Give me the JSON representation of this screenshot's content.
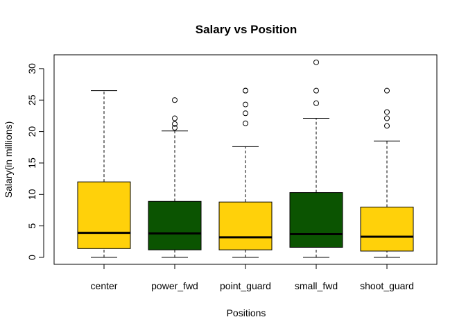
{
  "chart_data": {
    "type": "boxplot",
    "title": "Salary vs Position",
    "xlabel": "Positions",
    "ylabel": "Salary(in millions)",
    "ylim": [
      0,
      31
    ],
    "yticks": [
      0,
      5,
      10,
      15,
      20,
      25,
      30
    ],
    "categories": [
      "center",
      "power_fwd",
      "point_guard",
      "small_fwd",
      "shoot_guard"
    ],
    "boxes": [
      {
        "category": "center",
        "min": 0.0,
        "q1": 1.4,
        "median": 3.9,
        "q3": 12.0,
        "max": 26.5,
        "outliers": [],
        "color": "#FFD10A"
      },
      {
        "category": "power_fwd",
        "min": 0.0,
        "q1": 1.2,
        "median": 3.8,
        "q3": 8.9,
        "max": 20.1,
        "outliers": [
          20.6,
          21.2,
          22.1,
          25.0
        ],
        "color": "#0B5401"
      },
      {
        "category": "point_guard",
        "min": 0.0,
        "q1": 1.2,
        "median": 3.2,
        "q3": 8.8,
        "max": 17.6,
        "outliers": [
          21.3,
          22.9,
          24.3,
          26.5,
          26.5
        ],
        "color": "#FFD10A"
      },
      {
        "category": "small_fwd",
        "min": 0.0,
        "q1": 1.6,
        "median": 3.7,
        "q3": 10.3,
        "max": 22.1,
        "outliers": [
          24.5,
          26.5,
          31.0
        ],
        "color": "#0B5401"
      },
      {
        "category": "shoot_guard",
        "min": 0.0,
        "q1": 1.0,
        "median": 3.3,
        "q3": 8.0,
        "max": 18.5,
        "outliers": [
          20.9,
          22.1,
          23.1,
          26.5
        ],
        "color": "#FFD10A"
      }
    ],
    "grid": false,
    "legend": "none"
  }
}
